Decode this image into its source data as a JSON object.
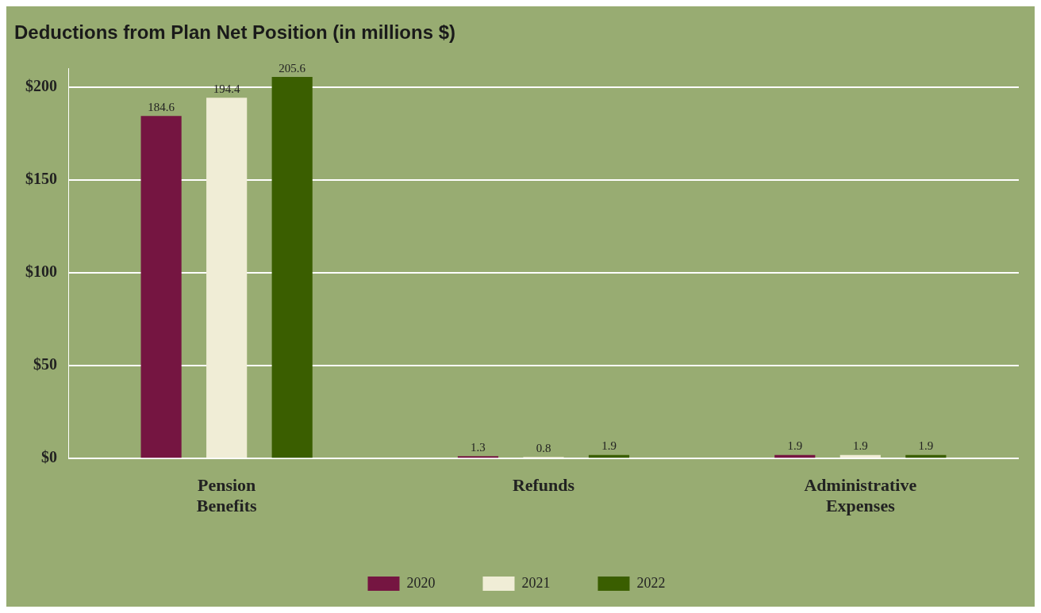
{
  "chart_data": {
    "type": "bar",
    "title": "Deductions from Plan Net Position (in millions $)",
    "categories": [
      "Pension\nBenefits",
      "Refunds",
      "Administrative\nExpenses"
    ],
    "series": [
      {
        "name": "2020",
        "color": "#751541",
        "values": [
          184.6,
          1.3,
          1.9
        ]
      },
      {
        "name": "2021",
        "color": "#f0edd6",
        "values": [
          194.4,
          0.8,
          1.9
        ]
      },
      {
        "name": "2022",
        "color": "#3a5e00",
        "values": [
          205.6,
          1.9,
          1.9
        ]
      }
    ],
    "ylim": [
      0,
      210
    ],
    "yticks": [
      {
        "value": 0,
        "label": "$0"
      },
      {
        "value": 50,
        "label": "$50"
      },
      {
        "value": 100,
        "label": "$100"
      },
      {
        "value": 150,
        "label": "$150"
      },
      {
        "value": 200,
        "label": "$200"
      }
    ],
    "grid": "y",
    "legend": "bottom",
    "data_labels": true
  }
}
